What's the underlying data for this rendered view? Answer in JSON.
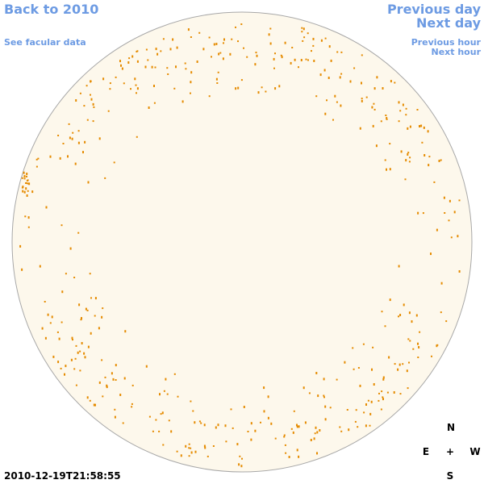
{
  "header": {
    "back_link": "Back to 2010",
    "facular_link": "See facular data",
    "previous_day": "Previous day",
    "next_day": "Next day",
    "previous_hour": "Previous hour",
    "next_hour": "Next hour"
  },
  "timestamp": "2010-12-19T21:58:55",
  "compass": {
    "north": "N",
    "east": "E",
    "center": "+",
    "west": "W",
    "south": "S"
  }
}
